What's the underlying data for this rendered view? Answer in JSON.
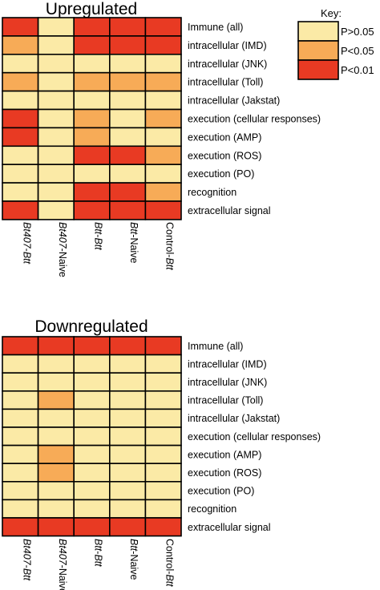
{
  "colors": {
    "p_gt_005": "#FBEAA6",
    "p_lt_005": "#F7AB57",
    "p_lt_001": "#E83A23"
  },
  "legend": {
    "title": "Key:",
    "entries": [
      {
        "label": "P>0.05",
        "level": 0
      },
      {
        "label": "P<0.05",
        "level": 1
      },
      {
        "label": "P<0.01",
        "level": 2
      }
    ]
  },
  "chart_data": [
    {
      "type": "heatmap",
      "title": "Upregulated",
      "rows": [
        "Immune (all)",
        "intracellular (IMD)",
        "intracellular (JNK)",
        "intracellular (Toll)",
        "intracellular (Jakstat)",
        "execution (cellular responses)",
        "execution (AMP)",
        "execution (ROS)",
        "execution (PO)",
        "recognition",
        "extracellular signal"
      ],
      "columns": [
        {
          "italic": "Bt407",
          "plain": "-",
          "italic2": "Btt"
        },
        {
          "italic": "Bt407",
          "plain": "-Naive",
          "italic2": ""
        },
        {
          "italic": "Btt",
          "plain": "-",
          "italic2": "Btt"
        },
        {
          "italic": "Btt",
          "plain": "-Naive",
          "italic2": ""
        },
        {
          "italic": "",
          "plain": "Control-",
          "italic2": "Btt"
        }
      ],
      "values": [
        [
          2,
          0,
          2,
          2,
          2
        ],
        [
          1,
          0,
          2,
          2,
          2
        ],
        [
          0,
          0,
          0,
          0,
          0
        ],
        [
          1,
          0,
          1,
          1,
          1
        ],
        [
          0,
          0,
          0,
          0,
          0
        ],
        [
          2,
          0,
          1,
          0,
          1
        ],
        [
          2,
          0,
          1,
          0,
          0
        ],
        [
          0,
          0,
          2,
          2,
          1
        ],
        [
          0,
          0,
          0,
          0,
          0
        ],
        [
          0,
          0,
          2,
          2,
          1
        ],
        [
          2,
          0,
          2,
          2,
          2
        ]
      ]
    },
    {
      "type": "heatmap",
      "title": "Downregulated",
      "rows": [
        "Immune (all)",
        "intracellular (IMD)",
        "intracellular (JNK)",
        "intracellular (Toll)",
        "intracellular (Jakstat)",
        "execution (cellular responses)",
        "execution (AMP)",
        "execution (ROS)",
        "execution (PO)",
        "recognition",
        "extracellular signal"
      ],
      "columns": [
        {
          "italic": "Bt407",
          "plain": "-",
          "italic2": "Btt"
        },
        {
          "italic": "Bt407",
          "plain": "-Naive",
          "italic2": ""
        },
        {
          "italic": "Btt",
          "plain": "-",
          "italic2": "Btt"
        },
        {
          "italic": "Btt",
          "plain": "-Naive",
          "italic2": ""
        },
        {
          "italic": "",
          "plain": "Control-",
          "italic2": "Btt"
        }
      ],
      "values": [
        [
          2,
          2,
          2,
          2,
          2
        ],
        [
          0,
          0,
          0,
          0,
          0
        ],
        [
          0,
          0,
          0,
          0,
          0
        ],
        [
          0,
          1,
          0,
          0,
          0
        ],
        [
          0,
          0,
          0,
          0,
          0
        ],
        [
          0,
          0,
          0,
          0,
          0
        ],
        [
          0,
          1,
          0,
          0,
          0
        ],
        [
          0,
          1,
          0,
          0,
          0
        ],
        [
          0,
          0,
          0,
          0,
          0
        ],
        [
          0,
          0,
          0,
          0,
          0
        ],
        [
          2,
          2,
          2,
          2,
          2
        ]
      ]
    }
  ]
}
